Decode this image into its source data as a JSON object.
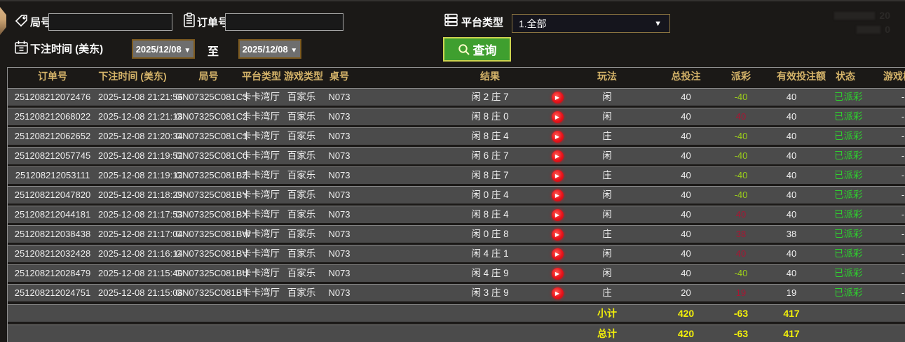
{
  "filters": {
    "round_label": "局号",
    "round_value": "",
    "order_label": "订单号",
    "order_value": "",
    "platform_label": "平台类型",
    "platform_value": "1.全部",
    "bet_time_label": "下注时间 (美东)",
    "date_from": "2025/12/08",
    "to_label": "至",
    "date_to": "2025/12/08",
    "query_label": "查询"
  },
  "icons": {
    "dropdown": "▼",
    "play": "▶"
  },
  "watermark": {
    "line1_value": "20",
    "line2_value": "0"
  },
  "table": {
    "headers": [
      "订单号",
      "下注时间 (美东)",
      "局号",
      "平台类型",
      "游戏类型",
      "桌号",
      "结果",
      "",
      "玩法",
      "总投注",
      "派彩",
      "有效投注额",
      "状态",
      "游戏模式"
    ],
    "rows": [
      {
        "order_no": "251208212072476",
        "bet_time": "2025-12-08 21:21:56",
        "round_no": "GN07325C081C3",
        "platform": "卡卡湾厅",
        "game_type": "百家乐",
        "table_no": "N073",
        "result": "闲 2 庄 7",
        "play_type": "闲",
        "total_bet": "40",
        "payout": "-40",
        "valid_bet": "40",
        "status": "已派彩",
        "game_mode": "-"
      },
      {
        "order_no": "251208212068022",
        "bet_time": "2025-12-08 21:21:18",
        "round_no": "GN07325C081C2",
        "platform": "卡卡湾厅",
        "game_type": "百家乐",
        "table_no": "N073",
        "result": "闲 8 庄 0",
        "play_type": "闲",
        "total_bet": "40",
        "payout": "40",
        "valid_bet": "40",
        "status": "已派彩",
        "game_mode": "-"
      },
      {
        "order_no": "251208212062652",
        "bet_time": "2025-12-08 21:20:34",
        "round_no": "GN07325C081C1",
        "platform": "卡卡湾厅",
        "game_type": "百家乐",
        "table_no": "N073",
        "result": "闲 8 庄 4",
        "play_type": "庄",
        "total_bet": "40",
        "payout": "-40",
        "valid_bet": "40",
        "status": "已派彩",
        "game_mode": "-"
      },
      {
        "order_no": "251208212057745",
        "bet_time": "2025-12-08 21:19:52",
        "round_no": "GN07325C081C0",
        "platform": "卡卡湾厅",
        "game_type": "百家乐",
        "table_no": "N073",
        "result": "闲 6 庄 7",
        "play_type": "闲",
        "total_bet": "40",
        "payout": "-40",
        "valid_bet": "40",
        "status": "已派彩",
        "game_mode": "-"
      },
      {
        "order_no": "251208212053111",
        "bet_time": "2025-12-08 21:19:12",
        "round_no": "GN07325C081BZ",
        "platform": "卡卡湾厅",
        "game_type": "百家乐",
        "table_no": "N073",
        "result": "闲 8 庄 7",
        "play_type": "庄",
        "total_bet": "40",
        "payout": "-40",
        "valid_bet": "40",
        "status": "已派彩",
        "game_mode": "-"
      },
      {
        "order_no": "251208212047820",
        "bet_time": "2025-12-08 21:18:29",
        "round_no": "GN07325C081BY",
        "platform": "卡卡湾厅",
        "game_type": "百家乐",
        "table_no": "N073",
        "result": "闲 0 庄 4",
        "play_type": "闲",
        "total_bet": "40",
        "payout": "-40",
        "valid_bet": "40",
        "status": "已派彩",
        "game_mode": "-"
      },
      {
        "order_no": "251208212044181",
        "bet_time": "2025-12-08 21:17:53",
        "round_no": "GN07325C081BX",
        "platform": "卡卡湾厅",
        "game_type": "百家乐",
        "table_no": "N073",
        "result": "闲 8 庄 4",
        "play_type": "闲",
        "total_bet": "40",
        "payout": "40",
        "valid_bet": "40",
        "status": "已派彩",
        "game_mode": "-"
      },
      {
        "order_no": "251208212038438",
        "bet_time": "2025-12-08 21:17:04",
        "round_no": "GN07325C081BW",
        "platform": "卡卡湾厅",
        "game_type": "百家乐",
        "table_no": "N073",
        "result": "闲 0 庄 8",
        "play_type": "庄",
        "total_bet": "40",
        "payout": "38",
        "valid_bet": "38",
        "status": "已派彩",
        "game_mode": "-"
      },
      {
        "order_no": "251208212032428",
        "bet_time": "2025-12-08 21:16:14",
        "round_no": "GN07325C081BV",
        "platform": "卡卡湾厅",
        "game_type": "百家乐",
        "table_no": "N073",
        "result": "闲 4 庄 1",
        "play_type": "闲",
        "total_bet": "40",
        "payout": "40",
        "valid_bet": "40",
        "status": "已派彩",
        "game_mode": "-"
      },
      {
        "order_no": "251208212028479",
        "bet_time": "2025-12-08 21:15:40",
        "round_no": "GN07325C081BU",
        "platform": "卡卡湾厅",
        "game_type": "百家乐",
        "table_no": "N073",
        "result": "闲 4 庄 9",
        "play_type": "闲",
        "total_bet": "40",
        "payout": "-40",
        "valid_bet": "40",
        "status": "已派彩",
        "game_mode": "-"
      },
      {
        "order_no": "251208212024751",
        "bet_time": "2025-12-08 21:15:08",
        "round_no": "GN07325C081BT",
        "platform": "卡卡湾厅",
        "game_type": "百家乐",
        "table_no": "N073",
        "result": "闲 3 庄 9",
        "play_type": "庄",
        "total_bet": "20",
        "payout": "19",
        "valid_bet": "19",
        "status": "已派彩",
        "game_mode": "-"
      }
    ],
    "subtotal": {
      "label": "小计",
      "total_bet": "420",
      "payout": "-63",
      "valid_bet": "417"
    },
    "grand_total": {
      "label": "总计",
      "total_bet": "420",
      "payout": "-63",
      "valid_bet": "417"
    }
  }
}
